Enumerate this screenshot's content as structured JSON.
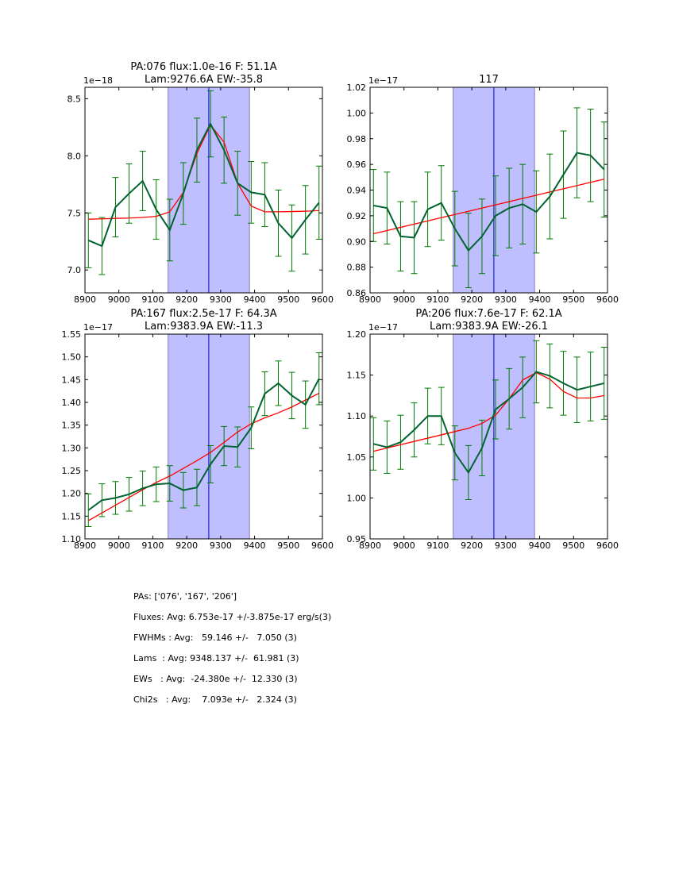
{
  "chart_data": [
    {
      "type": "line",
      "title_lines": [
        "PA:076 flux:1.0e-16 F: 51.1A",
        "Lam:9276.6A EW:-35.8"
      ],
      "xlabel": "",
      "ylabel": "",
      "offset_label": "1e−18",
      "xlim": [
        8900,
        9600
      ],
      "ylim": [
        6.8,
        8.6
      ],
      "xticks": [
        8900,
        9000,
        9100,
        9200,
        9300,
        9400,
        9500,
        9600
      ],
      "yticks": [
        7.0,
        7.5,
        8.0,
        8.5
      ],
      "ytick_labels": [
        "7.0",
        "7.5",
        "8.0",
        "8.5"
      ],
      "shaded_region": [
        9145,
        9385
      ],
      "vline": 9265,
      "x": [
        8910,
        8950,
        8990,
        9030,
        9070,
        9110,
        9150,
        9190,
        9230,
        9270,
        9310,
        9350,
        9390,
        9430,
        9470,
        9510,
        9550,
        9590
      ],
      "series": [
        {
          "name": "data",
          "values": [
            7.26,
            7.21,
            7.55,
            7.67,
            7.78,
            7.53,
            7.35,
            7.67,
            8.05,
            8.28,
            8.05,
            7.76,
            7.68,
            7.66,
            7.41,
            7.28,
            7.44,
            7.59
          ]
        },
        {
          "name": "error",
          "values": [
            0.24,
            0.25,
            0.26,
            0.26,
            0.26,
            0.26,
            0.27,
            0.27,
            0.28,
            0.29,
            0.29,
            0.28,
            0.27,
            0.28,
            0.29,
            0.29,
            0.3,
            0.32
          ]
        },
        {
          "name": "fit",
          "values": [
            7.445,
            7.448,
            7.452,
            7.455,
            7.46,
            7.47,
            7.51,
            7.68,
            8.02,
            8.27,
            8.12,
            7.76,
            7.56,
            7.51,
            7.51,
            7.512,
            7.515,
            7.52
          ]
        }
      ]
    },
    {
      "type": "line",
      "title_lines": [
        "117"
      ],
      "xlabel": "",
      "ylabel": "",
      "offset_label": "1e−17",
      "xlim": [
        8900,
        9600
      ],
      "ylim": [
        0.86,
        1.02
      ],
      "xticks": [
        8900,
        9000,
        9100,
        9200,
        9300,
        9400,
        9500,
        9600
      ],
      "yticks": [
        0.86,
        0.88,
        0.9,
        0.92,
        0.94,
        0.96,
        0.98,
        1.0,
        1.02
      ],
      "ytick_labels": [
        "0.86",
        "0.88",
        "0.90",
        "0.92",
        "0.94",
        "0.96",
        "0.98",
        "1.00",
        "1.02"
      ],
      "shaded_region": [
        9145,
        9385
      ],
      "vline": 9265,
      "x": [
        8910,
        8950,
        8990,
        9030,
        9070,
        9110,
        9150,
        9190,
        9230,
        9270,
        9310,
        9350,
        9390,
        9430,
        9470,
        9510,
        9550,
        9590
      ],
      "series": [
        {
          "name": "data",
          "values": [
            0.928,
            0.926,
            0.904,
            0.903,
            0.925,
            0.93,
            0.91,
            0.893,
            0.904,
            0.92,
            0.926,
            0.929,
            0.923,
            0.935,
            0.952,
            0.969,
            0.967,
            0.956
          ]
        },
        {
          "name": "error",
          "values": [
            0.028,
            0.028,
            0.027,
            0.028,
            0.029,
            0.029,
            0.029,
            0.029,
            0.029,
            0.031,
            0.031,
            0.031,
            0.032,
            0.033,
            0.034,
            0.035,
            0.036,
            0.037
          ]
        },
        {
          "name": "fit",
          "values": [
            0.906,
            0.9085,
            0.911,
            0.9135,
            0.916,
            0.9185,
            0.921,
            0.9235,
            0.926,
            0.9285,
            0.931,
            0.9335,
            0.936,
            0.9385,
            0.941,
            0.9435,
            0.946,
            0.9485
          ]
        }
      ]
    },
    {
      "type": "line",
      "title_lines": [
        "PA:167 flux:2.5e-17 F: 64.3A",
        "Lam:9383.9A EW:-11.3"
      ],
      "xlabel": "",
      "ylabel": "",
      "offset_label": "1e−17",
      "xlim": [
        8900,
        9600
      ],
      "ylim": [
        1.1,
        1.55
      ],
      "xticks": [
        8900,
        9000,
        9100,
        9200,
        9300,
        9400,
        9500,
        9600
      ],
      "yticks": [
        1.1,
        1.15,
        1.2,
        1.25,
        1.3,
        1.35,
        1.4,
        1.45,
        1.5,
        1.55
      ],
      "ytick_labels": [
        "1.10",
        "1.15",
        "1.20",
        "1.25",
        "1.30",
        "1.35",
        "1.40",
        "1.45",
        "1.50",
        "1.55"
      ],
      "shaded_region": [
        9145,
        9385
      ],
      "vline": 9265,
      "x": [
        8910,
        8950,
        8990,
        9030,
        9070,
        9110,
        9150,
        9190,
        9230,
        9270,
        9310,
        9350,
        9390,
        9430,
        9470,
        9510,
        9550,
        9590
      ],
      "series": [
        {
          "name": "data",
          "values": [
            1.163,
            1.185,
            1.19,
            1.198,
            1.211,
            1.22,
            1.222,
            1.207,
            1.213,
            1.264,
            1.304,
            1.302,
            1.344,
            1.419,
            1.442,
            1.415,
            1.395,
            1.452
          ]
        },
        {
          "name": "error",
          "values": [
            0.036,
            0.036,
            0.036,
            0.037,
            0.038,
            0.038,
            0.039,
            0.039,
            0.04,
            0.041,
            0.043,
            0.044,
            0.046,
            0.048,
            0.049,
            0.051,
            0.052,
            0.057
          ]
        },
        {
          "name": "fit",
          "values": [
            1.14,
            1.157,
            1.174,
            1.191,
            1.208,
            1.224,
            1.238,
            1.255,
            1.272,
            1.29,
            1.312,
            1.335,
            1.353,
            1.366,
            1.377,
            1.39,
            1.405,
            1.42
          ]
        }
      ]
    },
    {
      "type": "line",
      "title_lines": [
        "PA:206 flux:7.6e-17 F: 62.1A",
        "Lam:9383.9A EW:-26.1"
      ],
      "xlabel": "",
      "ylabel": "",
      "offset_label": "1e−17",
      "xlim": [
        8900,
        9600
      ],
      "ylim": [
        0.95,
        1.2
      ],
      "xticks": [
        8900,
        9000,
        9100,
        9200,
        9300,
        9400,
        9500,
        9600
      ],
      "yticks": [
        0.95,
        1.0,
        1.05,
        1.1,
        1.15,
        1.2
      ],
      "ytick_labels": [
        "0.95",
        "1.00",
        "1.05",
        "1.10",
        "1.15",
        "1.20"
      ],
      "shaded_region": [
        9145,
        9385
      ],
      "vline": 9265,
      "x": [
        8910,
        8950,
        8990,
        9030,
        9070,
        9110,
        9150,
        9190,
        9230,
        9270,
        9310,
        9350,
        9390,
        9430,
        9470,
        9510,
        9550,
        9590
      ],
      "series": [
        {
          "name": "data",
          "values": [
            1.066,
            1.062,
            1.068,
            1.083,
            1.1,
            1.1,
            1.055,
            1.031,
            1.061,
            1.108,
            1.121,
            1.135,
            1.154,
            1.149,
            1.14,
            1.132,
            1.136,
            1.14
          ]
        },
        {
          "name": "error",
          "values": [
            0.032,
            0.032,
            0.033,
            0.033,
            0.034,
            0.035,
            0.033,
            0.033,
            0.034,
            0.036,
            0.037,
            0.037,
            0.038,
            0.039,
            0.039,
            0.04,
            0.042,
            0.044
          ]
        },
        {
          "name": "fit",
          "values": [
            1.057,
            1.061,
            1.065,
            1.069,
            1.073,
            1.077,
            1.081,
            1.085,
            1.091,
            1.101,
            1.121,
            1.144,
            1.153,
            1.145,
            1.13,
            1.122,
            1.122,
            1.125
          ]
        }
      ]
    }
  ],
  "colors": {
    "data_line": "#006430",
    "errorbar": "#007a00",
    "fit_line": "#ff0000",
    "shade": "#bfbfff",
    "shade_edge": "#8080c0",
    "vline": "#0000cc"
  },
  "stats": {
    "pas": "PAs: ['076', '167', '206']",
    "fluxes": "Fluxes: Avg: 6.753e-17 +/-3.875e-17 erg/s(3)",
    "fwhms": "FWHMs : Avg:   59.146 +/-   7.050 (3)",
    "lams": "Lams  : Avg: 9348.137 +/-  61.981 (3)",
    "ews": "EWs   : Avg:  -24.380e +/-  12.330 (3)",
    "chi2s": "Chi2s   : Avg:    7.093e +/-   2.324 (3)"
  }
}
